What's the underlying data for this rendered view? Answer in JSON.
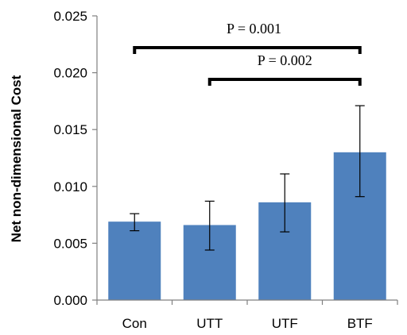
{
  "chart_data": {
    "type": "bar",
    "title": "",
    "xlabel": "",
    "ylabel": "Net non-dimensional Cost",
    "categories": [
      "Con",
      "UTT",
      "UTF",
      "BTF"
    ],
    "values": [
      0.0069,
      0.0066,
      0.0086,
      0.013
    ],
    "error_low": [
      0.0061,
      0.0044,
      0.006,
      0.0091
    ],
    "error_high": [
      0.0076,
      0.0087,
      0.0111,
      0.0171
    ],
    "ylim": [
      0,
      0.025
    ],
    "yticks": [
      "0.000",
      "0.005",
      "0.010",
      "0.015",
      "0.020",
      "0.025"
    ],
    "ytick_values": [
      0,
      0.005,
      0.01,
      0.015,
      0.02,
      0.025
    ],
    "bar_color": "#4f81bd",
    "grid": false,
    "annotations": [
      {
        "text": "P = 0.001",
        "from": 0,
        "to": 3
      },
      {
        "text": "P = 0.002",
        "from": 1,
        "to": 3
      }
    ]
  }
}
